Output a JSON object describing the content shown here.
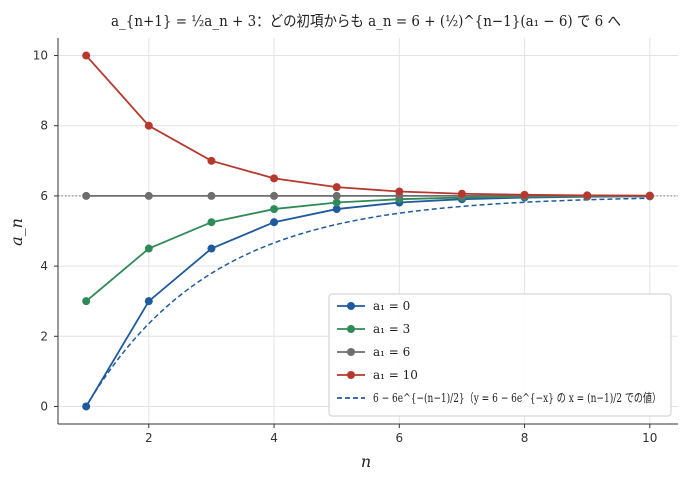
{
  "chart_data": {
    "type": "line",
    "title": "a_{n+1} = ½a_n + 3：どの初項からも a_n = 6 + (½)^{n−1}(a₁ − 6) で 6 へ",
    "xlabel": "n",
    "ylabel": "a_n",
    "xlim": [
      0.55,
      10.45
    ],
    "ylim": [
      -0.5,
      10.5
    ],
    "xticks": [
      2,
      4,
      6,
      8,
      10
    ],
    "yticks": [
      0,
      2,
      4,
      6,
      8,
      10
    ],
    "grid": true,
    "legend_position": "lower-right",
    "reference_line": {
      "y": 6,
      "style": "dotted",
      "color": "#777777"
    },
    "x": [
      1,
      2,
      3,
      4,
      5,
      6,
      7,
      8,
      9,
      10
    ],
    "series": [
      {
        "name": "a₁ = 0",
        "color": "#1f5a9e",
        "marker": "circle",
        "values": [
          0,
          3,
          4.5,
          5.25,
          5.625,
          5.8125,
          5.90625,
          5.953125,
          5.9765625,
          5.98828125
        ]
      },
      {
        "name": "a₁ = 3",
        "color": "#2e8b57",
        "marker": "circle",
        "values": [
          3,
          4.5,
          5.25,
          5.625,
          5.8125,
          5.90625,
          5.953125,
          5.9765625,
          5.98828125,
          5.994140625
        ]
      },
      {
        "name": "a₁ = 6",
        "color": "#6e6e6e",
        "marker": "circle",
        "values": [
          6,
          6,
          6,
          6,
          6,
          6,
          6,
          6,
          6,
          6
        ]
      },
      {
        "name": "a₁ = 10",
        "color": "#b5392e",
        "marker": "circle",
        "values": [
          10,
          8,
          7,
          6.5,
          6.25,
          6.125,
          6.0625,
          6.03125,
          6.015625,
          6.0078125
        ]
      }
    ],
    "curve": {
      "name": "6 − 6e^{−(n−1)/2}（y = 6 − 6e^{−x} の x = (n−1)/2 での値）",
      "color": "#1f5a9e",
      "style": "dashed",
      "x_range": [
        1,
        10
      ]
    }
  }
}
